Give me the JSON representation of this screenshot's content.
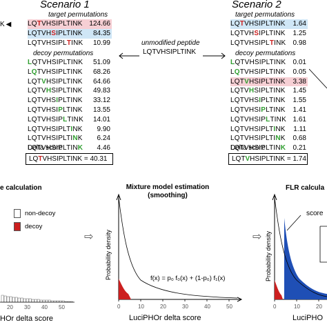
{
  "top": {
    "left_stub": "K",
    "scenario1": {
      "title": "Scenario 1",
      "target_label": "target permutations",
      "targets": [
        {
          "pre": "LQ",
          "mod": "T",
          "post": "VHSIPLTINK",
          "score": "124.66",
          "hl": "red"
        },
        {
          "pre": "LQTVH",
          "mod": "S",
          "post": "IPLTINK",
          "score": "84.35",
          "hl": "blue"
        },
        {
          "pre": "LQTVHSIPL",
          "mod": "T",
          "post": "INK",
          "score": "10.99",
          "hl": ""
        }
      ],
      "decoy_label": "decoy permutations",
      "decoys": [
        {
          "pre": "",
          "mod": "L",
          "post": "QTVHSIPLTINK",
          "score": "51.09"
        },
        {
          "pre": "L",
          "mod": "Q",
          "post": "TVHSIPLTINK",
          "score": "68.26"
        },
        {
          "pre": "LQT",
          "mod": "V",
          "post": "HSIPLTINK",
          "score": "64.66"
        },
        {
          "pre": "LQTV",
          "mod": "H",
          "post": "SIPLTINK",
          "score": "49.83"
        },
        {
          "pre": "LQTVHS",
          "mod": "I",
          "post": "PLTINK",
          "score": "33.12"
        },
        {
          "pre": "LQTVHSI",
          "mod": "P",
          "post": "LTINK",
          "score": "13.55"
        },
        {
          "pre": "LQTVHSIP",
          "mod": "L",
          "post": "TINK",
          "score": "14.01"
        },
        {
          "pre": "LQTVHSIPLT",
          "mod": "I",
          "post": "NK",
          "score": "9.90"
        },
        {
          "pre": "LQTVHSIPLTI",
          "mod": "N",
          "post": "K",
          "score": "6.24"
        },
        {
          "pre": "LQTVHSIPLTIN",
          "mod": "K",
          "post": "",
          "score": "4.46"
        }
      ],
      "delta_label": "Delta score",
      "delta": {
        "pre": "LQ",
        "mod": "T",
        "post": "VHSIPLTINK = 40.31"
      }
    },
    "middle": {
      "label": "unmodified peptide",
      "peptide": "LQTVHSIPLTINK"
    },
    "scenario2": {
      "title": "Scenario 2",
      "target_label": "target permutations",
      "targets": [
        {
          "pre": "LQ",
          "mod": "T",
          "post": "VHSIPLTINK",
          "score": "1.64",
          "hl": "blue"
        },
        {
          "pre": "LQTVH",
          "mod": "S",
          "post": "IPLTINK",
          "score": "1.25",
          "hl": ""
        },
        {
          "pre": "LQTVHSIPL",
          "mod": "T",
          "post": "INK",
          "score": "0.98",
          "hl": ""
        }
      ],
      "decoy_label": "decoy permutations",
      "decoys": [
        {
          "pre": "",
          "mod": "L",
          "post": "QTVHSIPLTINK",
          "score": "0.01",
          "hl": ""
        },
        {
          "pre": "L",
          "mod": "Q",
          "post": "TVHSIPLTINK",
          "score": "0.05",
          "hl": ""
        },
        {
          "pre": "LQT",
          "mod": "V",
          "post": "HSIPLTINK",
          "score": "3.38",
          "hl": "red"
        },
        {
          "pre": "LQTV",
          "mod": "H",
          "post": "SIPLTINK",
          "score": "1.45",
          "hl": ""
        },
        {
          "pre": "LQTVHS",
          "mod": "I",
          "post": "PLTINK",
          "score": "1.55",
          "hl": ""
        },
        {
          "pre": "LQTVHSI",
          "mod": "P",
          "post": "LTINK",
          "score": "1.41",
          "hl": ""
        },
        {
          "pre": "LQTVHSIP",
          "mod": "L",
          "post": "TINK",
          "score": "1.61",
          "hl": ""
        },
        {
          "pre": "LQTVHSIPLT",
          "mod": "I",
          "post": "NK",
          "score": "1.11",
          "hl": ""
        },
        {
          "pre": "LQTVHSIPLTI",
          "mod": "N",
          "post": "K",
          "score": "0.68",
          "hl": ""
        },
        {
          "pre": "LQTVHSIPLTIN",
          "mod": "K",
          "post": "",
          "score": "0.21",
          "hl": ""
        }
      ],
      "delta_label": "Delta score",
      "delta": {
        "pre": "LQT",
        "mod": "V",
        "post": "HSIPLTINK = 1.74"
      }
    }
  },
  "bottom": {
    "left": {
      "title": "e calculation",
      "legend_nondecoy": "non-decoy",
      "legend_decoy": "decoy",
      "ticks": [
        "20",
        "30",
        "40",
        "50"
      ],
      "xlabel": "HOr delta score"
    },
    "middle": {
      "title_line1": "Mixture model estimation",
      "title_line2": "(smoothing)",
      "ylabel": "Probability density",
      "formula": "f(x) = p₀ f₀(x) + (1-p₀) f₁(x)",
      "ticks": [
        "0",
        "10",
        "20",
        "30",
        "40",
        "50"
      ],
      "xlabel": "LuciPHOr delta score"
    },
    "right": {
      "title": "FLR calcula",
      "callout": "score",
      "ylabel": "Probability density",
      "ticks": [
        "0",
        "10",
        "20"
      ],
      "xlabel": "LuciPHO"
    }
  },
  "colors": {
    "mod_red": "#cc1f1f",
    "mod_green": "#2e9e2e",
    "hl_blue": "#cfe6f6",
    "hl_red": "#f6cfd4",
    "decoy_fill": "#cc1f1f",
    "flr_fill": "#1f4fb5"
  }
}
